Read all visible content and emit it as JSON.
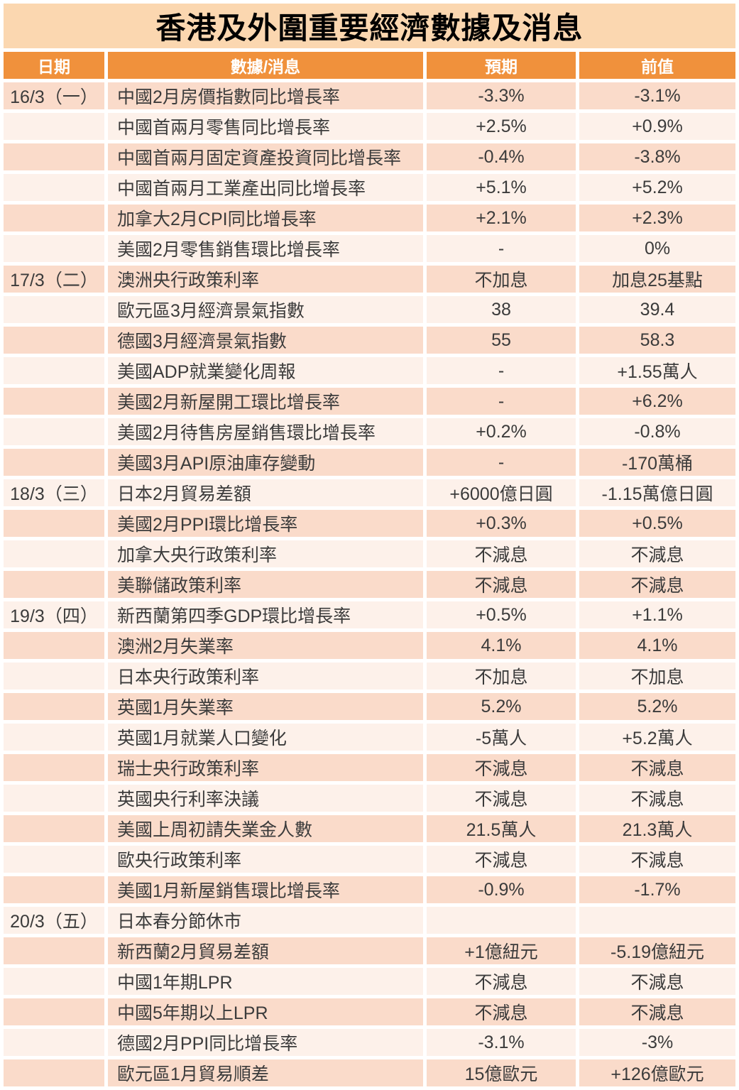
{
  "title": "香港及外圍重要經濟數據及消息",
  "colors": {
    "title_bg": "#FBD7B0",
    "title_text": "#000000",
    "header_bg": "#F0913C",
    "header_text": "#FFFFFF",
    "row_odd": "#FADBCA",
    "row_even": "#FDF1EA",
    "body_text": "#3B3B3B"
  },
  "chart_data": {
    "type": "table",
    "title": "香港及外圍重要經濟數據及消息",
    "columns": [
      "日期",
      "數據/消息",
      "預期",
      "前值"
    ],
    "rows": [
      {
        "date": "16/3（一）",
        "item": "中國2月房價指數同比增長率",
        "expected": "-3.3%",
        "previous": "-3.1%"
      },
      {
        "date": "",
        "item": "中國首兩月零售同比增長率",
        "expected": "+2.5%",
        "previous": "+0.9%"
      },
      {
        "date": "",
        "item": "中國首兩月固定資產投資同比增長率",
        "expected": "-0.4%",
        "previous": "-3.8%"
      },
      {
        "date": "",
        "item": "中國首兩月工業產出同比增長率",
        "expected": "+5.1%",
        "previous": "+5.2%"
      },
      {
        "date": "",
        "item": "加拿大2月CPI同比增長率",
        "expected": "+2.1%",
        "previous": "+2.3%"
      },
      {
        "date": "",
        "item": "美國2月零售銷售環比增長率",
        "expected": "-",
        "previous": "0%"
      },
      {
        "date": "17/3（二）",
        "item": "澳洲央行政策利率",
        "expected": "不加息",
        "previous": "加息25基點"
      },
      {
        "date": "",
        "item": "歐元區3月經濟景氣指數",
        "expected": "38",
        "previous": "39.4"
      },
      {
        "date": "",
        "item": "德國3月經濟景氣指數",
        "expected": "55",
        "previous": "58.3"
      },
      {
        "date": "",
        "item": "美國ADP就業變化周報",
        "expected": "-",
        "previous": "+1.55萬人"
      },
      {
        "date": "",
        "item": "美國2月新屋開工環比增長率",
        "expected": "-",
        "previous": "+6.2%"
      },
      {
        "date": "",
        "item": "美國2月待售房屋銷售環比增長率",
        "expected": "+0.2%",
        "previous": "-0.8%"
      },
      {
        "date": "",
        "item": "美國3月API原油庫存變動",
        "expected": "-",
        "previous": "-170萬桶"
      },
      {
        "date": "18/3（三）",
        "item": "日本2月貿易差額",
        "expected": "+6000億日圓",
        "previous": "-1.15萬億日圓"
      },
      {
        "date": "",
        "item": "美國2月PPI環比增長率",
        "expected": "+0.3%",
        "previous": "+0.5%"
      },
      {
        "date": "",
        "item": "加拿大央行政策利率",
        "expected": "不減息",
        "previous": "不減息"
      },
      {
        "date": "",
        "item": "美聯儲政策利率",
        "expected": "不減息",
        "previous": "不減息"
      },
      {
        "date": "19/3（四）",
        "item": "新西蘭第四季GDP環比增長率",
        "expected": "+0.5%",
        "previous": "+1.1%"
      },
      {
        "date": "",
        "item": "澳洲2月失業率",
        "expected": "4.1%",
        "previous": "4.1%"
      },
      {
        "date": "",
        "item": "日本央行政策利率",
        "expected": "不加息",
        "previous": "不加息"
      },
      {
        "date": "",
        "item": "英國1月失業率",
        "expected": "5.2%",
        "previous": "5.2%"
      },
      {
        "date": "",
        "item": "英國1月就業人口變化",
        "expected": "-5萬人",
        "previous": "+5.2萬人"
      },
      {
        "date": "",
        "item": "瑞士央行政策利率",
        "expected": "不減息",
        "previous": "不減息"
      },
      {
        "date": "",
        "item": "英國央行利率決議",
        "expected": "不減息",
        "previous": "不減息"
      },
      {
        "date": "",
        "item": "美國上周初請失業金人數",
        "expected": "21.5萬人",
        "previous": "21.3萬人"
      },
      {
        "date": "",
        "item": "歐央行政策利率",
        "expected": "不減息",
        "previous": "不減息"
      },
      {
        "date": "",
        "item": "美國1月新屋銷售環比增長率",
        "expected": "-0.9%",
        "previous": "-1.7%"
      },
      {
        "date": "20/3（五）",
        "item": "日本春分節休市",
        "expected": "",
        "previous": ""
      },
      {
        "date": "",
        "item": "新西蘭2月貿易差額",
        "expected": "+1億紐元",
        "previous": "-5.19億紐元"
      },
      {
        "date": "",
        "item": "中國1年期LPR",
        "expected": "不減息",
        "previous": "不減息"
      },
      {
        "date": "",
        "item": "中國5年期以上LPR",
        "expected": "不減息",
        "previous": "不減息"
      },
      {
        "date": "",
        "item": "德國2月PPI同比增長率",
        "expected": "-3.1%",
        "previous": "-3%"
      },
      {
        "date": "",
        "item": "歐元區1月貿易順差",
        "expected": "15億歐元",
        "previous": "+126億歐元"
      }
    ]
  }
}
